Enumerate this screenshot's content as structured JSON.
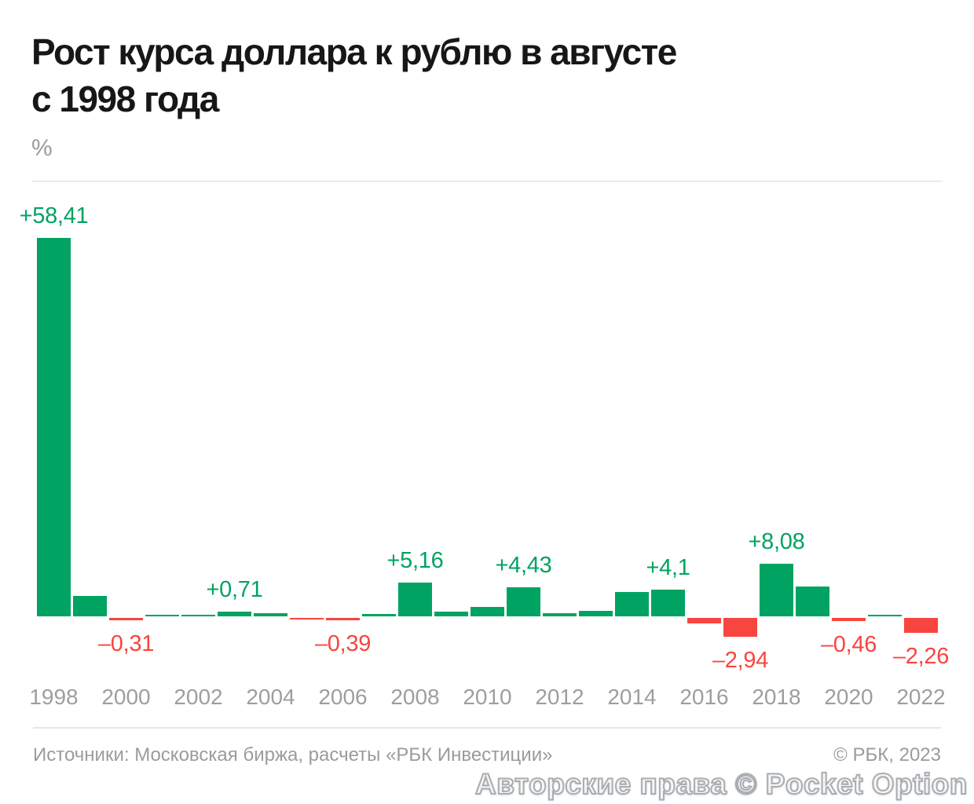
{
  "header": {
    "line1": "Рост курса доллара к рублю в августе",
    "line2": "с 1998 года"
  },
  "chart_data": {
    "type": "bar",
    "title": "Рост курса доллара к рублю в августе с 1998 года",
    "xlabel": "",
    "ylabel": "%",
    "ylim": [
      -5,
      60
    ],
    "grid": false,
    "legend": false,
    "positive_color": "#00A361",
    "negative_color": "#F8453F",
    "categories": [
      1998,
      1999,
      2000,
      2001,
      2002,
      2003,
      2004,
      2005,
      2006,
      2007,
      2008,
      2009,
      2010,
      2011,
      2012,
      2013,
      2014,
      2015,
      2016,
      2017,
      2018,
      2019,
      2020,
      2021,
      2022
    ],
    "values": [
      58.41,
      3.2,
      -0.31,
      0.3,
      0.3,
      0.71,
      0.45,
      -0.25,
      -0.39,
      0.35,
      5.16,
      0.7,
      1.45,
      4.43,
      0.5,
      0.85,
      3.8,
      4.1,
      -0.9,
      -2.94,
      8.08,
      4.6,
      -0.46,
      0.1,
      -2.26
    ],
    "point_labels": [
      "+58,41",
      null,
      "–0,31",
      null,
      null,
      "+0,71",
      null,
      null,
      "–0,39",
      null,
      "+5,16",
      null,
      null,
      "+4,43",
      null,
      null,
      null,
      "+4,1",
      null,
      "–2,94",
      "+8,08",
      null,
      "–0,46",
      null,
      "–2,26"
    ],
    "xticks": [
      1998,
      2000,
      2002,
      2004,
      2006,
      2008,
      2010,
      2012,
      2014,
      2016,
      2018,
      2020,
      2022
    ]
  },
  "footer": {
    "source": "Источники: Московская биржа, расчеты «РБК Инвестиции»",
    "copyright": "© РБК, 2023"
  },
  "watermark": "Авторские права © Pocket Option"
}
